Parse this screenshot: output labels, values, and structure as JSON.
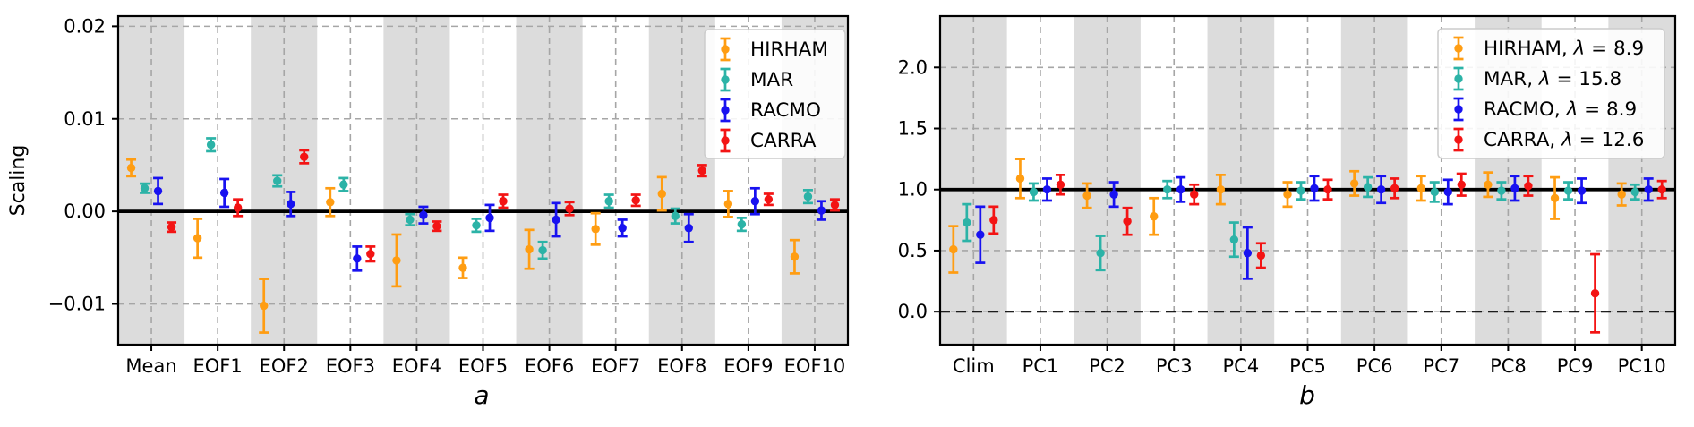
{
  "figure": {
    "background": "#ffffff",
    "band_color": "#dcdcdc",
    "grid_color": "#a6a6a6",
    "axis_color": "#000000",
    "legend_border_color": "#cccccc",
    "legend_background": "rgba(255,255,255,0.88)"
  },
  "chart_data": [
    {
      "type": "errorbar",
      "panel_label": "a",
      "ylabel": "Scaling",
      "categories": [
        "Mean",
        "EOF1",
        "EOF2",
        "EOF3",
        "EOF4",
        "EOF5",
        "EOF6",
        "EOF7",
        "EOF8",
        "EOF9",
        "EOF10"
      ],
      "yticks": [
        0.02,
        0.01,
        0.0,
        -0.01
      ],
      "ytick_labels": [
        "0.02",
        "0.01",
        "0.00",
        "−0.01"
      ],
      "ylim": [
        -0.0144,
        0.0211
      ],
      "grid": true,
      "shaded_category_indices": [
        0,
        2,
        4,
        6,
        8,
        10
      ],
      "ref_lines": [
        {
          "y": 0.0,
          "style": "solid",
          "width": 3.8
        }
      ],
      "legend_entries": [
        "HIRHAM",
        "MAR",
        "RACMO",
        "CARRA"
      ],
      "legend_position": "upper right",
      "series": [
        {
          "name": "HIRHAM",
          "color": "#ff9d12",
          "values": [
            0.0047,
            -0.0029,
            -0.0102,
            0.001,
            -0.0053,
            -0.0061,
            -0.0041,
            -0.0019,
            0.0019,
            0.0008,
            -0.0049
          ],
          "errors": [
            0.0009,
            0.0021,
            0.0029,
            0.0015,
            0.0028,
            0.0011,
            0.0021,
            0.0017,
            0.0018,
            0.0014,
            0.0018
          ]
        },
        {
          "name": "MAR",
          "color": "#2cb3a7",
          "values": [
            0.0025,
            0.0072,
            0.0033,
            0.0029,
            -0.0009,
            -0.0015,
            -0.0042,
            0.0011,
            -0.0005,
            -0.0014,
            0.0016
          ],
          "errors": [
            0.0005,
            0.0007,
            0.0006,
            0.0007,
            0.0006,
            0.0007,
            0.0009,
            0.0007,
            0.0008,
            0.0007,
            0.0007
          ]
        },
        {
          "name": "RACMO",
          "color": "#1812f0",
          "values": [
            0.0022,
            0.002,
            0.0008,
            -0.0051,
            -0.0004,
            -0.0007,
            -0.0009,
            -0.0018,
            -0.0018,
            0.0011,
            0.0001
          ],
          "errors": [
            0.0014,
            0.0015,
            0.0013,
            0.0013,
            0.0009,
            0.0014,
            0.0018,
            0.0009,
            0.0015,
            0.0014,
            0.001
          ]
        },
        {
          "name": "CARRA",
          "color": "#f31414",
          "values": [
            -0.0017,
            0.0004,
            0.0059,
            -0.0046,
            -0.0016,
            0.0011,
            0.0003,
            0.0012,
            0.0044,
            0.0013,
            0.0007
          ],
          "errors": [
            0.0005,
            0.0009,
            0.0007,
            0.0008,
            0.0005,
            0.0007,
            0.0007,
            0.0006,
            0.0006,
            0.0006,
            0.0006
          ]
        }
      ]
    },
    {
      "type": "errorbar",
      "panel_label": "b",
      "ylabel": "",
      "categories": [
        "Clim",
        "PC1",
        "PC2",
        "PC3",
        "PC4",
        "PC5",
        "PC6",
        "PC7",
        "PC8",
        "PC9",
        "PC10"
      ],
      "yticks": [
        2.0,
        1.5,
        1.0,
        0.5,
        0.0
      ],
      "ytick_labels": [
        "2.0",
        "1.5",
        "1.0",
        "0.5",
        "0.0"
      ],
      "ylim": [
        -0.27,
        2.42
      ],
      "grid": true,
      "shaded_category_indices": [
        0,
        2,
        4,
        6,
        8,
        10
      ],
      "ref_lines": [
        {
          "y": 1.0,
          "style": "solid",
          "width": 3.8
        },
        {
          "y": 0.0,
          "style": "dashed",
          "width": 2.2
        }
      ],
      "legend_entries": [
        "HIRHAM, λ = 8.9",
        "MAR, λ = 15.8",
        "RACMO, λ = 8.9",
        "CARRA, λ = 12.6"
      ],
      "legend_position": "upper right",
      "series": [
        {
          "name": "HIRHAM",
          "color": "#ff9d12",
          "values": [
            0.51,
            1.09,
            0.95,
            0.78,
            1.0,
            0.96,
            1.05,
            1.01,
            1.04,
            0.93,
            0.96
          ],
          "errors": [
            0.19,
            0.16,
            0.1,
            0.15,
            0.12,
            0.1,
            0.1,
            0.1,
            0.1,
            0.17,
            0.09
          ]
        },
        {
          "name": "MAR",
          "color": "#2cb3a7",
          "values": [
            0.73,
            0.98,
            0.48,
            1.0,
            0.59,
            0.99,
            1.02,
            0.98,
            0.99,
            0.99,
            0.98
          ],
          "errors": [
            0.15,
            0.07,
            0.14,
            0.07,
            0.14,
            0.07,
            0.08,
            0.08,
            0.07,
            0.07,
            0.06
          ]
        },
        {
          "name": "RACMO",
          "color": "#1812f0",
          "values": [
            0.63,
            1.0,
            0.96,
            1.0,
            0.48,
            1.01,
            1.0,
            0.98,
            1.01,
            0.99,
            1.0
          ],
          "errors": [
            0.23,
            0.09,
            0.1,
            0.1,
            0.21,
            0.1,
            0.11,
            0.1,
            0.1,
            0.1,
            0.09
          ]
        },
        {
          "name": "CARRA",
          "color": "#f31414",
          "values": [
            0.75,
            1.04,
            0.74,
            0.96,
            0.46,
            1.0,
            1.01,
            1.04,
            1.03,
            0.15,
            1.0
          ],
          "errors": [
            0.11,
            0.08,
            0.11,
            0.08,
            0.1,
            0.08,
            0.08,
            0.09,
            0.08,
            0.32,
            0.07
          ]
        }
      ]
    }
  ]
}
